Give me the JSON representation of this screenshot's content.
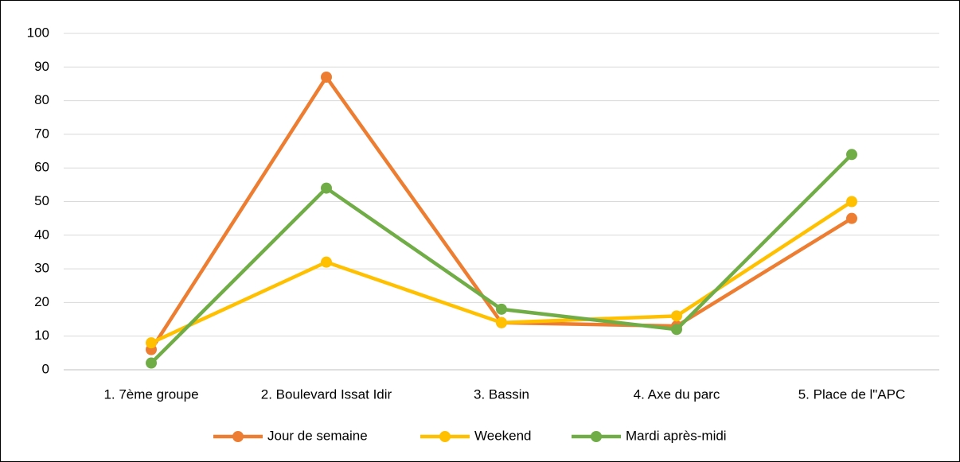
{
  "chart_data": {
    "type": "line",
    "categories": [
      "1. 7ème groupe",
      "2. Boulevard Issat Idir",
      "3. Bassin",
      "4. Axe du parc",
      "5. Place de l\"APC"
    ],
    "series": [
      {
        "name": "Jour de semaine",
        "color": "#ed7d31",
        "values": [
          6,
          87,
          14,
          13,
          45
        ]
      },
      {
        "name": "Weekend",
        "color": "#ffc000",
        "values": [
          8,
          32,
          14,
          16,
          50
        ]
      },
      {
        "name": "Mardi après-midi",
        "color": "#70ad47",
        "values": [
          2,
          54,
          18,
          12,
          64
        ]
      }
    ],
    "ylim": [
      0,
      100
    ],
    "yticks": [
      0,
      10,
      20,
      30,
      40,
      50,
      60,
      70,
      80,
      90,
      100
    ],
    "grid": true,
    "legend": "bottom"
  }
}
